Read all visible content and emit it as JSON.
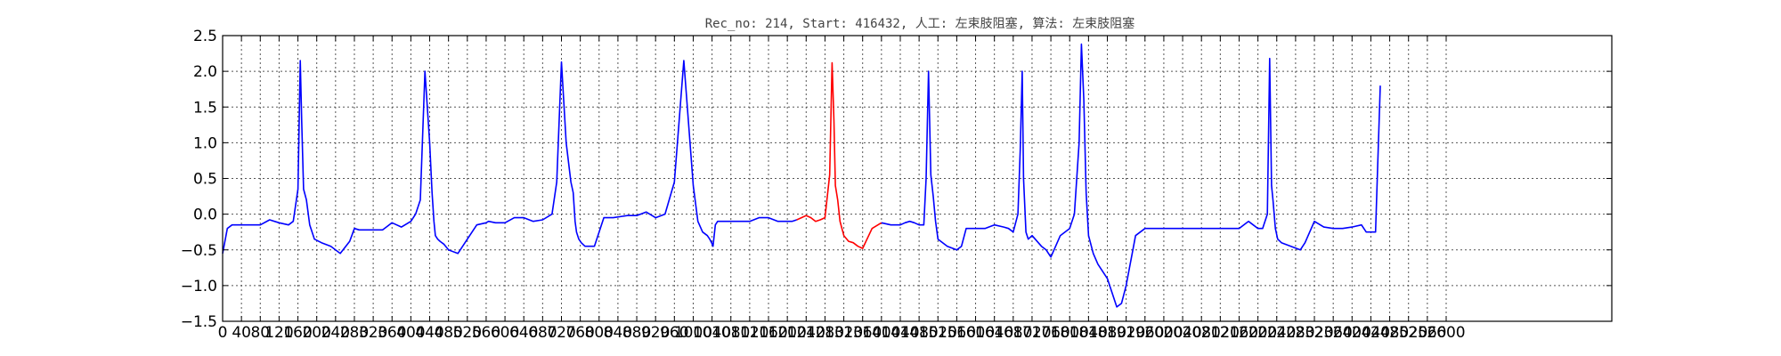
{
  "chart_data": {
    "type": "line",
    "title": "Rec_no: 214, Start: 416432, 人工: 左束肢阻塞, 算法: 左束肢阻塞",
    "xlabel": "",
    "ylabel": "",
    "xlim": [
      0,
      3880
    ],
    "ylim": [
      -1.5,
      2.5
    ],
    "grid": true,
    "x_ticks": [
      0,
      40,
      80,
      120,
      160,
      200,
      240,
      280,
      320,
      360,
      400,
      440,
      480,
      520,
      560,
      600,
      640,
      680,
      720,
      760,
      800,
      840,
      880,
      920,
      960,
      1000,
      1040,
      1080,
      1120,
      1160,
      1200,
      1240,
      1280,
      1320,
      1360,
      1400,
      1440,
      1480,
      1520,
      1560,
      1600,
      1640,
      1680,
      1720,
      1760,
      1800,
      1840,
      1880,
      1920,
      1960,
      2000,
      2040,
      2080,
      2120,
      2160,
      2200,
      2240,
      2280,
      2320,
      2360,
      2400,
      2440,
      2480,
      2520,
      2560,
      2600
    ],
    "x_tick_labels": [
      "0",
      "40",
      "80",
      "120",
      "160",
      "200",
      "240",
      "280",
      "320",
      "360",
      "400",
      "440",
      "480",
      "520",
      "560",
      "600",
      "640",
      "680",
      "720",
      "760",
      "800",
      "840",
      "880",
      "920",
      "960",
      "1000",
      "1040",
      "1080",
      "1120",
      "1160",
      "1200",
      "1240",
      "1280",
      "1320",
      "1360",
      "1400",
      "1440",
      "1480",
      "1520",
      "1560",
      "1600",
      "1640",
      "1680",
      "1720",
      "1760",
      "1800",
      "1840",
      "1880",
      "1920",
      "1960",
      "2000",
      "2040",
      "2080",
      "2120",
      "2160",
      "2200",
      "2240",
      "2280",
      "2320",
      "2360",
      "2400",
      "2440",
      "2480",
      "2520",
      "2560",
      "2600"
    ],
    "y_ticks": [
      -1.5,
      -1.0,
      -0.5,
      0.0,
      0.5,
      1.0,
      1.5,
      2.0,
      2.5
    ],
    "y_tick_labels": [
      "−1.5",
      "−1.0",
      "−0.5",
      "0.0",
      "0.5",
      "1.0",
      "1.5",
      "2.0",
      "2.5"
    ],
    "series": [
      {
        "color": "#0000ff",
        "x": [
          0,
          10,
          20,
          40,
          60,
          80,
          100,
          120,
          140,
          150,
          160,
          165,
          168,
          172,
          178,
          185,
          195,
          210,
          230,
          250,
          270,
          280,
          290,
          300,
          320,
          340,
          360,
          380,
          400,
          410,
          420,
          430,
          440,
          445,
          449,
          452,
          457,
          462,
          470,
          480,
          500,
          520,
          540,
          560,
          565,
          580,
          600,
          620,
          640,
          660,
          680,
          700,
          710,
          720,
          730,
          740,
          745,
          749,
          752,
          757,
          762,
          770,
          790,
          810,
          830,
          850,
          860,
          880,
          900,
          920,
          940,
          960,
          980,
          1000,
          1010,
          1020,
          1030,
          1035,
          1039,
          1042,
          1047,
          1052,
          1060,
          1080,
          1100,
          1120,
          1140,
          1160,
          1180,
          1200,
          1210,
          1220
        ],
        "y": [
          -0.55,
          -0.2,
          -0.15,
          -0.15,
          -0.15,
          -0.15,
          -0.08,
          -0.12,
          -0.15,
          -0.1,
          0.35,
          2.15,
          1.3,
          0.35,
          0.2,
          -0.15,
          -0.35,
          -0.4,
          -0.45,
          -0.55,
          -0.38,
          -0.2,
          -0.22,
          -0.22,
          -0.22,
          -0.22,
          -0.12,
          -0.18,
          -0.1,
          0.0,
          0.2,
          2.0,
          1.0,
          0.3,
          -0.1,
          -0.3,
          -0.35,
          -0.38,
          -0.42,
          -0.5,
          -0.55,
          -0.35,
          -0.15,
          -0.12,
          -0.1,
          -0.12,
          -0.12,
          -0.05,
          -0.05,
          -0.1,
          -0.08,
          0.0,
          0.45,
          2.13,
          1.0,
          0.45,
          0.3,
          -0.1,
          -0.25,
          -0.35,
          -0.4,
          -0.45,
          -0.45,
          -0.05,
          -0.05,
          -0.03,
          -0.02,
          -0.02,
          0.03,
          -0.05,
          0.0,
          0.45,
          2.15,
          0.4,
          -0.1,
          -0.25,
          -0.3,
          -0.35,
          -0.4,
          -0.45,
          -0.15,
          -0.1,
          -0.1,
          -0.1,
          -0.1,
          -0.1,
          -0.05,
          -0.05,
          -0.1,
          -0.1,
          -0.1,
          -0.08
        ]
      },
      {
        "color": "#ff0000",
        "x": [
          1220,
          1230,
          1240,
          1250,
          1260,
          1270,
          1280,
          1290,
          1295,
          1299,
          1302,
          1307,
          1312,
          1320,
          1330,
          1340,
          1350,
          1360,
          1380,
          1400
        ],
        "y": [
          -0.08,
          -0.05,
          -0.02,
          -0.05,
          -0.1,
          -0.08,
          -0.05,
          0.55,
          2.12,
          1.3,
          0.4,
          0.2,
          -0.1,
          -0.3,
          -0.38,
          -0.4,
          -0.45,
          -0.48,
          -0.2,
          -0.12
        ]
      },
      {
        "color": "#0000ff",
        "x": [
          1400,
          1420,
          1440,
          1450,
          1460,
          1470,
          1480,
          1490,
          1495,
          1500,
          1505,
          1510,
          1515,
          1520,
          1540,
          1560,
          1570,
          1580,
          1600,
          1620,
          1640,
          1660,
          1670,
          1680,
          1690,
          1695,
          1699,
          1702,
          1707,
          1712,
          1720,
          1740,
          1750,
          1760,
          1780,
          1800,
          1810,
          1820,
          1825,
          1830,
          1835,
          1840,
          1850,
          1860,
          1880,
          1890,
          1900,
          1910,
          1920,
          1940,
          1960,
          2000,
          2040,
          2080,
          2120,
          2160,
          2180,
          2190,
          2200,
          2210,
          2220,
          2225,
          2229,
          2232,
          2237,
          2242,
          2250,
          2270,
          2290,
          2300,
          2320,
          2340,
          2360,
          2380,
          2400,
          2420,
          2430,
          2440,
          2450,
          2460
        ],
        "y": [
          -0.12,
          -0.15,
          -0.15,
          -0.12,
          -0.1,
          -0.12,
          -0.15,
          -0.15,
          0.5,
          2.0,
          0.55,
          0.25,
          -0.1,
          -0.35,
          -0.45,
          -0.5,
          -0.45,
          -0.2,
          -0.2,
          -0.2,
          -0.15,
          -0.18,
          -0.2,
          -0.25,
          0.0,
          0.9,
          2.0,
          0.5,
          -0.25,
          -0.35,
          -0.3,
          -0.45,
          -0.5,
          -0.6,
          -0.3,
          -0.2,
          0.0,
          1.0,
          2.38,
          1.6,
          0.3,
          -0.3,
          -0.55,
          -0.7,
          -0.9,
          -1.1,
          -1.3,
          -1.25,
          -1.0,
          -0.3,
          -0.2,
          -0.2,
          -0.2,
          -0.2,
          -0.2,
          -0.2,
          -0.1,
          -0.15,
          -0.2,
          -0.2,
          0.0,
          2.18,
          0.4,
          0.2,
          -0.2,
          -0.35,
          -0.4,
          -0.45,
          -0.5,
          -0.4,
          -0.1,
          -0.18,
          -0.2,
          -0.2,
          -0.18,
          -0.15,
          -0.25,
          -0.25,
          -0.25,
          1.8
        ]
      }
    ]
  }
}
